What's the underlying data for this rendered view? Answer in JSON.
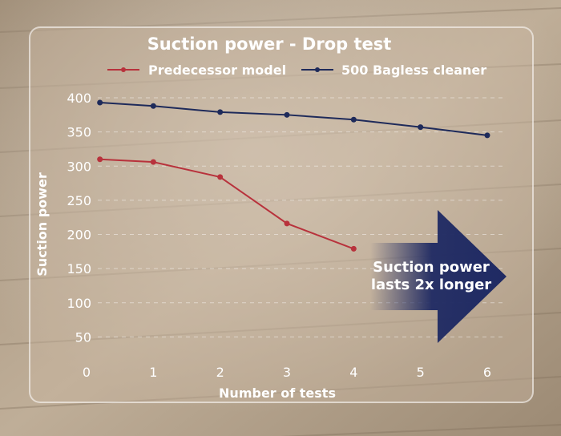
{
  "chart_data": {
    "type": "line",
    "title": "Suction power - Drop test",
    "xlabel": "Number of tests",
    "ylabel": "Suction power",
    "x_ticks": [
      "0",
      "1",
      "2",
      "3",
      "4",
      "5",
      "6"
    ],
    "y_ticks": [
      "50",
      "100",
      "150",
      "200",
      "250",
      "300",
      "350",
      "400"
    ],
    "xlim": [
      0,
      6
    ],
    "ylim": [
      0,
      400
    ],
    "grid": "horizontal dashed",
    "legend_placement": "top",
    "series": [
      {
        "name": "Predecessor model",
        "color": "#b8323c",
        "x": [
          0.2,
          1,
          2,
          3,
          4
        ],
        "y": [
          310,
          306,
          284,
          216,
          179
        ]
      },
      {
        "name": "500 Bagless cleaner",
        "color": "#1e2a5a",
        "x": [
          0.2,
          1,
          2,
          3,
          4,
          5,
          6
        ],
        "y": [
          393,
          388,
          379,
          375,
          368,
          357,
          345
        ]
      }
    ],
    "annotation": {
      "line1": "Suction power",
      "line2": "lasts 2x longer",
      "arrow_color": "#1f2a63"
    }
  }
}
